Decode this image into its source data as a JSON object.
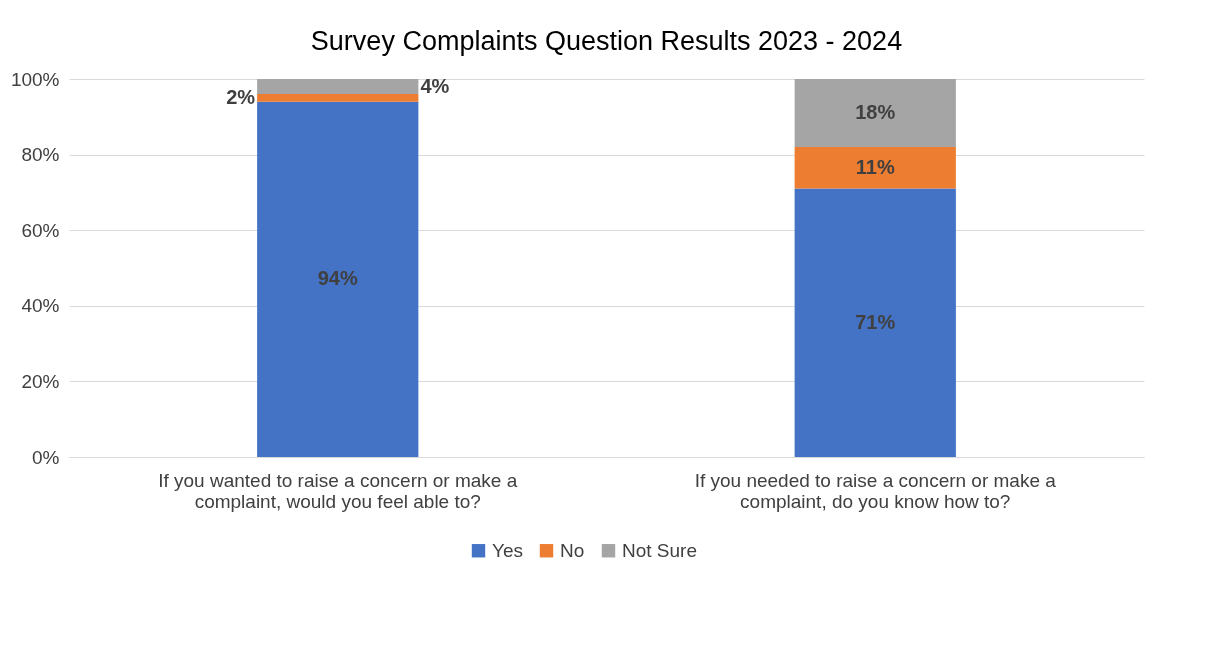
{
  "chart_data": {
    "type": "bar",
    "title": "Survey Complaints Question Results 2023 - 2024",
    "categories": [
      "If you wanted to raise a concern or make a complaint, would you feel able to?",
      "If you needed to raise a concern or make a complaint, do you know how to?"
    ],
    "stacked": true,
    "series": [
      {
        "name": "Yes",
        "color": "#4472c4",
        "values": [
          94,
          71
        ],
        "value_labels": [
          "94%",
          "71%"
        ]
      },
      {
        "name": "No",
        "color": "#ed7d31",
        "values": [
          2,
          11
        ],
        "value_labels": [
          "2%",
          "11%"
        ]
      },
      {
        "name": "Not Sure",
        "color": "#a5a5a5",
        "values": [
          4,
          18
        ],
        "value_labels": [
          "4%",
          "18%"
        ]
      }
    ],
    "ylim": [
      0,
      100
    ],
    "yticks": [
      {
        "value": 0,
        "label": "0%"
      },
      {
        "value": 20,
        "label": "20%"
      },
      {
        "value": 40,
        "label": "40%"
      },
      {
        "value": 60,
        "label": "60%"
      },
      {
        "value": 80,
        "label": "80%"
      },
      {
        "value": 100,
        "label": "100%"
      }
    ],
    "grid": "y",
    "legend": "bottom"
  }
}
